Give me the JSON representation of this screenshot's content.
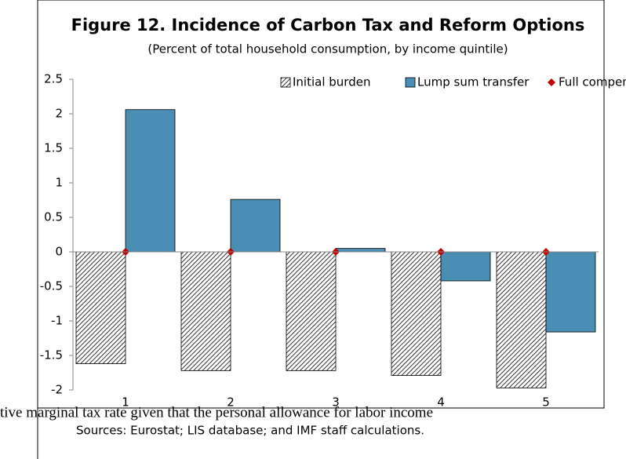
{
  "chart_data": {
    "type": "bar",
    "title": "Figure 12. Incidence of Carbon Tax and Reform Options",
    "subtitle": "(Percent of total household consumption, by income quintile)",
    "categories": [
      "1",
      "2",
      "3",
      "4",
      "5"
    ],
    "series": [
      {
        "name": "Initial burden",
        "type": "bar",
        "style": "hatch",
        "color": "#000000",
        "values": [
          -1.62,
          -1.72,
          -1.72,
          -1.79,
          -1.97
        ]
      },
      {
        "name": "Lump sum transfer",
        "type": "bar",
        "style": "solid",
        "color": "#4a8db5",
        "values": [
          2.06,
          0.76,
          0.05,
          -0.42,
          -1.16
        ]
      },
      {
        "name": "Full compensation-long run",
        "type": "scatter",
        "marker": "diamond",
        "color": "#c00000",
        "values": [
          0,
          0,
          0,
          0,
          0
        ]
      }
    ],
    "ylim": [
      -2,
      2.5
    ],
    "yticks": [
      -2,
      -1.5,
      -1,
      -0.5,
      0,
      0.5,
      1,
      1.5,
      2,
      2.5
    ],
    "legend": "top",
    "overlay_text": "tive marginal tax rate given that the personal allowance for labor income",
    "source": "Sources: Eurostat; LIS database; and IMF staff calculations."
  }
}
